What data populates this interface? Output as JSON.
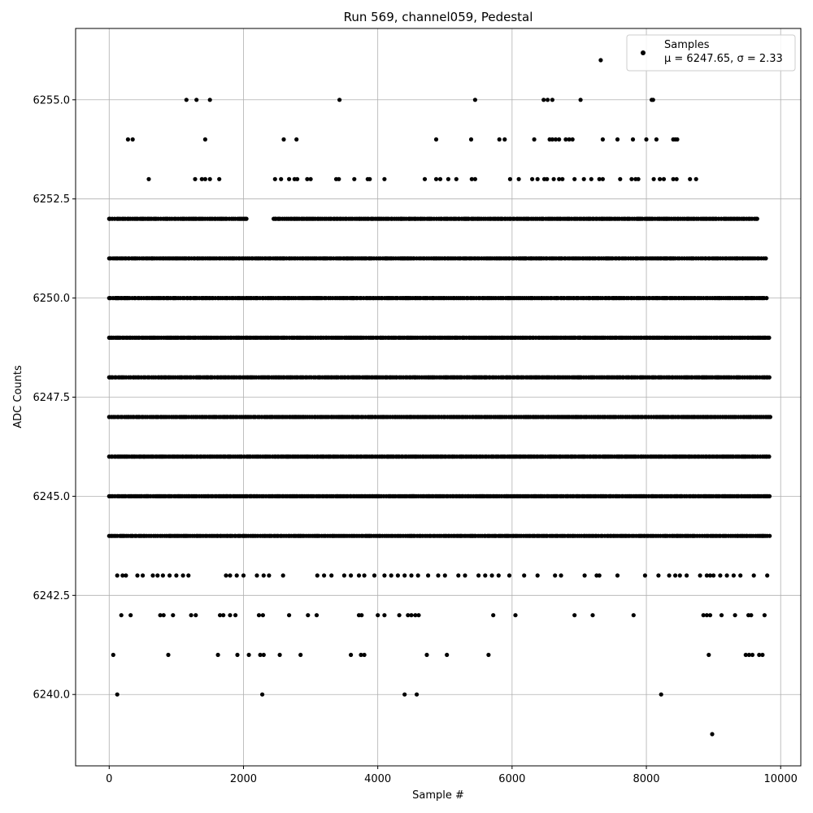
{
  "chart_data": {
    "type": "scatter",
    "title": "Run 569, channel059, Pedestal",
    "xlabel": "Sample #",
    "ylabel": "ADC Counts",
    "xlim": [
      -500,
      10300
    ],
    "ylim": [
      6238.2,
      6256.8
    ],
    "xticks": [
      0,
      2000,
      4000,
      6000,
      8000,
      10000
    ],
    "xtick_labels": [
      "0",
      "2000",
      "4000",
      "6000",
      "8000",
      "10000"
    ],
    "yticks": [
      6240.0,
      6242.5,
      6245.0,
      6247.5,
      6250.0,
      6252.5,
      6255.0
    ],
    "ytick_labels": [
      "6240.0",
      "6242.5",
      "6245.0",
      "6247.5",
      "6250.0",
      "6252.5",
      "6255.0"
    ],
    "grid": true,
    "legend": {
      "placement": "top-right",
      "label": "Samples",
      "stats": "μ = 6247.65, σ = 2.33"
    },
    "marker_color": "#000000",
    "series": [
      {
        "name": "Samples",
        "bands": [
          {
            "y": 6252,
            "ranges": [
              [
                0,
                2050
              ],
              [
                2450,
                9680
              ]
            ]
          },
          {
            "y": 6251,
            "ranges": [
              [
                0,
                9800
              ]
            ]
          },
          {
            "y": 6250,
            "ranges": [
              [
                0,
                9800
              ]
            ]
          },
          {
            "y": 6249,
            "ranges": [
              [
                0,
                9850
              ]
            ]
          },
          {
            "y": 6248,
            "ranges": [
              [
                0,
                9850
              ]
            ]
          },
          {
            "y": 6247,
            "ranges": [
              [
                0,
                9850
              ]
            ]
          },
          {
            "y": 6246,
            "ranges": [
              [
                0,
                9850
              ]
            ]
          },
          {
            "y": 6245,
            "ranges": [
              [
                0,
                9850
              ]
            ]
          },
          {
            "y": 6244,
            "ranges": [
              [
                0,
                9850
              ]
            ]
          }
        ],
        "points": [
          [
            7320,
            6256
          ],
          [
            1150,
            6255
          ],
          [
            1300,
            6255
          ],
          [
            1500,
            6255
          ],
          [
            3430,
            6255
          ],
          [
            5450,
            6255
          ],
          [
            6470,
            6255
          ],
          [
            6530,
            6255
          ],
          [
            6600,
            6255
          ],
          [
            7020,
            6255
          ],
          [
            8080,
            6255
          ],
          [
            8100,
            6255
          ],
          [
            280,
            6254
          ],
          [
            350,
            6254
          ],
          [
            1430,
            6254
          ],
          [
            2600,
            6254
          ],
          [
            2790,
            6254
          ],
          [
            4870,
            6254
          ],
          [
            5390,
            6254
          ],
          [
            5810,
            6254
          ],
          [
            5890,
            6254
          ],
          [
            6330,
            6254
          ],
          [
            6560,
            6254
          ],
          [
            6600,
            6254
          ],
          [
            6650,
            6254
          ],
          [
            6700,
            6254
          ],
          [
            6800,
            6254
          ],
          [
            6850,
            6254
          ],
          [
            6900,
            6254
          ],
          [
            7350,
            6254
          ],
          [
            7570,
            6254
          ],
          [
            7800,
            6254
          ],
          [
            8000,
            6254
          ],
          [
            8150,
            6254
          ],
          [
            8400,
            6254
          ],
          [
            8430,
            6254
          ],
          [
            8460,
            6254
          ],
          [
            590,
            6253
          ],
          [
            1280,
            6253
          ],
          [
            1380,
            6253
          ],
          [
            1430,
            6253
          ],
          [
            1500,
            6253
          ],
          [
            1640,
            6253
          ],
          [
            2470,
            6253
          ],
          [
            2560,
            6253
          ],
          [
            2680,
            6253
          ],
          [
            2760,
            6253
          ],
          [
            2800,
            6253
          ],
          [
            2950,
            6253
          ],
          [
            3000,
            6253
          ],
          [
            3380,
            6253
          ],
          [
            3420,
            6253
          ],
          [
            3650,
            6253
          ],
          [
            3850,
            6253
          ],
          [
            3880,
            6253
          ],
          [
            4100,
            6253
          ],
          [
            4700,
            6253
          ],
          [
            4870,
            6253
          ],
          [
            4930,
            6253
          ],
          [
            5050,
            6253
          ],
          [
            5170,
            6253
          ],
          [
            5400,
            6253
          ],
          [
            5450,
            6253
          ],
          [
            5970,
            6253
          ],
          [
            6100,
            6253
          ],
          [
            6300,
            6253
          ],
          [
            6380,
            6253
          ],
          [
            6480,
            6253
          ],
          [
            6520,
            6253
          ],
          [
            6620,
            6253
          ],
          [
            6700,
            6253
          ],
          [
            6750,
            6253
          ],
          [
            6930,
            6253
          ],
          [
            7070,
            6253
          ],
          [
            7180,
            6253
          ],
          [
            7300,
            6253
          ],
          [
            7350,
            6253
          ],
          [
            7610,
            6253
          ],
          [
            7780,
            6253
          ],
          [
            7840,
            6253
          ],
          [
            7880,
            6253
          ],
          [
            8110,
            6253
          ],
          [
            8200,
            6253
          ],
          [
            8260,
            6253
          ],
          [
            8400,
            6253
          ],
          [
            8450,
            6253
          ],
          [
            8650,
            6253
          ],
          [
            8740,
            6253
          ],
          [
            120,
            6243
          ],
          [
            200,
            6243
          ],
          [
            250,
            6243
          ],
          [
            420,
            6243
          ],
          [
            500,
            6243
          ],
          [
            650,
            6243
          ],
          [
            720,
            6243
          ],
          [
            800,
            6243
          ],
          [
            900,
            6243
          ],
          [
            1000,
            6243
          ],
          [
            1100,
            6243
          ],
          [
            1180,
            6243
          ],
          [
            1740,
            6243
          ],
          [
            1800,
            6243
          ],
          [
            1900,
            6243
          ],
          [
            2000,
            6243
          ],
          [
            2200,
            6243
          ],
          [
            2300,
            6243
          ],
          [
            2380,
            6243
          ],
          [
            2590,
            6243
          ],
          [
            3100,
            6243
          ],
          [
            3200,
            6243
          ],
          [
            3310,
            6243
          ],
          [
            3500,
            6243
          ],
          [
            3600,
            6243
          ],
          [
            3720,
            6243
          ],
          [
            3800,
            6243
          ],
          [
            3950,
            6243
          ],
          [
            4100,
            6243
          ],
          [
            4200,
            6243
          ],
          [
            4300,
            6243
          ],
          [
            4400,
            6243
          ],
          [
            4500,
            6243
          ],
          [
            4600,
            6243
          ],
          [
            4750,
            6243
          ],
          [
            4900,
            6243
          ],
          [
            5000,
            6243
          ],
          [
            5200,
            6243
          ],
          [
            5300,
            6243
          ],
          [
            5500,
            6243
          ],
          [
            5600,
            6243
          ],
          [
            5700,
            6243
          ],
          [
            5800,
            6243
          ],
          [
            5960,
            6243
          ],
          [
            6180,
            6243
          ],
          [
            6380,
            6243
          ],
          [
            6640,
            6243
          ],
          [
            6730,
            6243
          ],
          [
            7080,
            6243
          ],
          [
            7260,
            6243
          ],
          [
            7300,
            6243
          ],
          [
            7570,
            6243
          ],
          [
            7980,
            6243
          ],
          [
            8180,
            6243
          ],
          [
            8340,
            6243
          ],
          [
            8430,
            6243
          ],
          [
            8500,
            6243
          ],
          [
            8600,
            6243
          ],
          [
            8800,
            6243
          ],
          [
            8900,
            6243
          ],
          [
            8950,
            6243
          ],
          [
            9000,
            6243
          ],
          [
            9100,
            6243
          ],
          [
            9200,
            6243
          ],
          [
            9300,
            6243
          ],
          [
            9400,
            6243
          ],
          [
            9600,
            6243
          ],
          [
            9800,
            6243
          ],
          [
            180,
            6242
          ],
          [
            320,
            6242
          ],
          [
            760,
            6242
          ],
          [
            810,
            6242
          ],
          [
            950,
            6242
          ],
          [
            1220,
            6242
          ],
          [
            1290,
            6242
          ],
          [
            1650,
            6242
          ],
          [
            1700,
            6242
          ],
          [
            1800,
            6242
          ],
          [
            1880,
            6242
          ],
          [
            2230,
            6242
          ],
          [
            2290,
            6242
          ],
          [
            2680,
            6242
          ],
          [
            2960,
            6242
          ],
          [
            3090,
            6242
          ],
          [
            3720,
            6242
          ],
          [
            3760,
            6242
          ],
          [
            4000,
            6242
          ],
          [
            4100,
            6242
          ],
          [
            4320,
            6242
          ],
          [
            4450,
            6242
          ],
          [
            4500,
            6242
          ],
          [
            4560,
            6242
          ],
          [
            4610,
            6242
          ],
          [
            5720,
            6242
          ],
          [
            6050,
            6242
          ],
          [
            6930,
            6242
          ],
          [
            7200,
            6242
          ],
          [
            7810,
            6242
          ],
          [
            8850,
            6242
          ],
          [
            8900,
            6242
          ],
          [
            8950,
            6242
          ],
          [
            9120,
            6242
          ],
          [
            9320,
            6242
          ],
          [
            9520,
            6242
          ],
          [
            9560,
            6242
          ],
          [
            9760,
            6242
          ],
          [
            60,
            6241
          ],
          [
            880,
            6241
          ],
          [
            1620,
            6241
          ],
          [
            1910,
            6241
          ],
          [
            2080,
            6241
          ],
          [
            2250,
            6241
          ],
          [
            2300,
            6241
          ],
          [
            2540,
            6241
          ],
          [
            2850,
            6241
          ],
          [
            3600,
            6241
          ],
          [
            3750,
            6241
          ],
          [
            3800,
            6241
          ],
          [
            4730,
            6241
          ],
          [
            5030,
            6241
          ],
          [
            5650,
            6241
          ],
          [
            8930,
            6241
          ],
          [
            9480,
            6241
          ],
          [
            9530,
            6241
          ],
          [
            9580,
            6241
          ],
          [
            9680,
            6241
          ],
          [
            9730,
            6241
          ],
          [
            120,
            6240
          ],
          [
            2280,
            6240
          ],
          [
            4400,
            6240
          ],
          [
            4580,
            6240
          ],
          [
            8220,
            6240
          ],
          [
            8980,
            6239
          ]
        ]
      }
    ]
  }
}
